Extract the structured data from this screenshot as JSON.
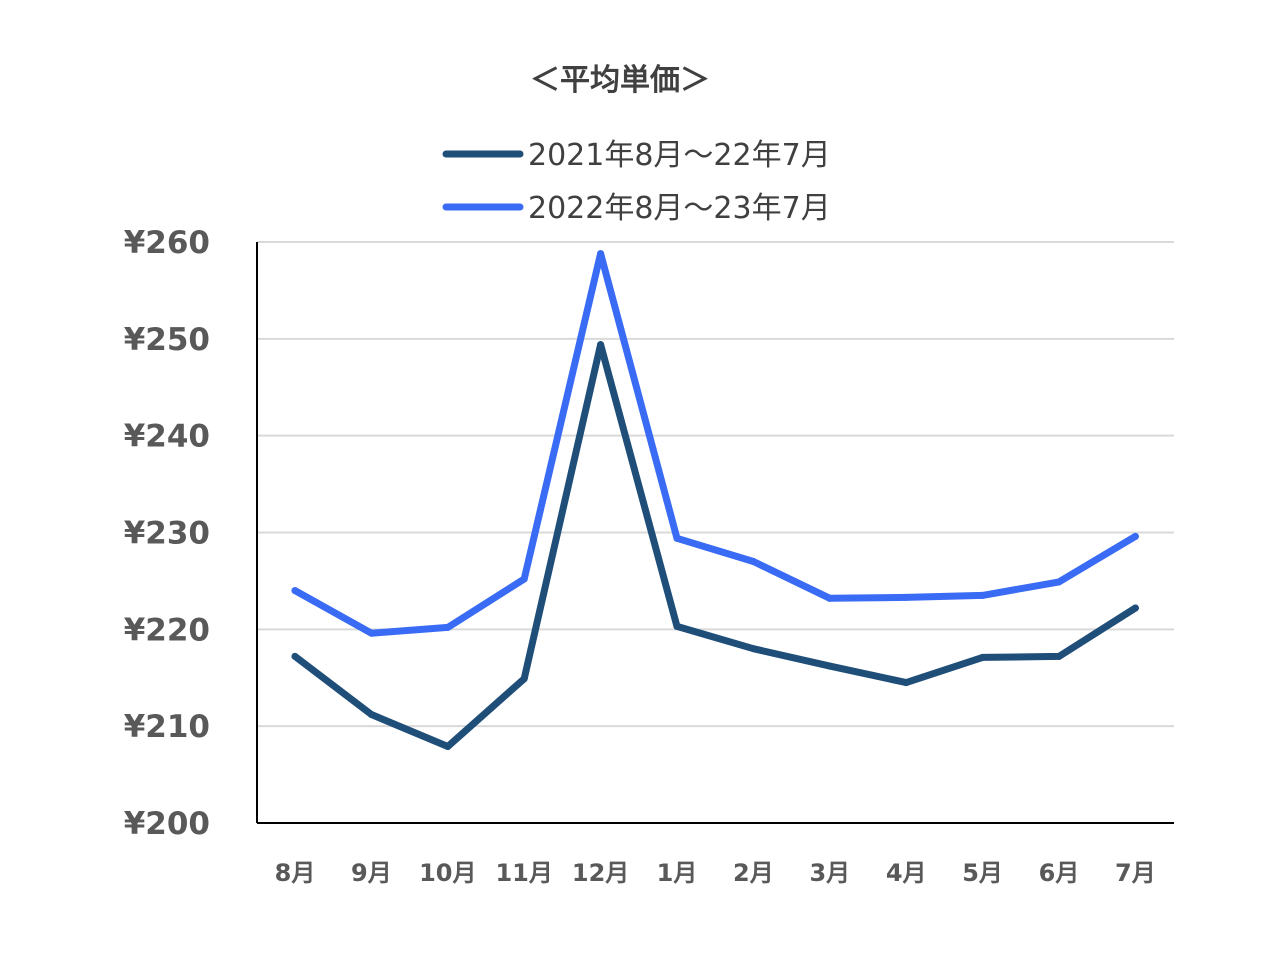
{
  "chart_data": {
    "type": "line",
    "title": "＜平均単価＞",
    "xlabel": "",
    "ylabel": "",
    "categories": [
      "8月",
      "9月",
      "10月",
      "11月",
      "12月",
      "1月",
      "2月",
      "3月",
      "4月",
      "5月",
      "6月",
      "7月"
    ],
    "ylim": [
      200,
      260
    ],
    "yticks": [
      200,
      210,
      220,
      230,
      240,
      250,
      260
    ],
    "ytick_labels": [
      "¥200",
      "¥210",
      "¥220",
      "¥230",
      "¥240",
      "¥250",
      "¥260"
    ],
    "grid": true,
    "legend_position": "top",
    "series": [
      {
        "name": "2021年8月～22年7月",
        "color": "#1F4E79",
        "values": [
          217.2,
          211.2,
          207.9,
          214.9,
          249.4,
          220.3,
          218.0,
          216.2,
          214.5,
          217.1,
          217.2,
          222.2
        ]
      },
      {
        "name": "2022年8月～23年7月",
        "color": "#3A6BF5",
        "values": [
          224.0,
          219.6,
          220.2,
          225.2,
          258.8,
          229.4,
          227.0,
          223.2,
          223.3,
          223.5,
          224.9,
          229.6
        ]
      }
    ]
  }
}
